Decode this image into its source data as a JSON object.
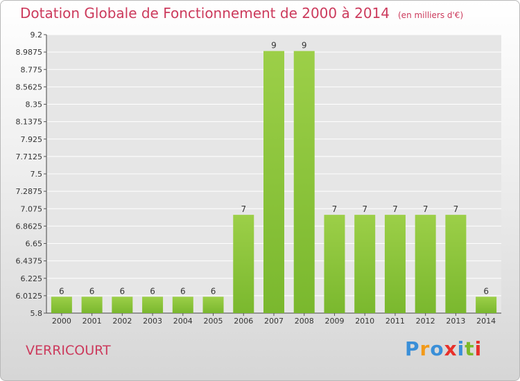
{
  "page": {
    "title": "Dotation Globale de Fonctionnement de 2000 à 2014",
    "subtitle": "(en milliers d'€)",
    "commune": "VERRICOURT",
    "logo": {
      "text": "Proxiti",
      "letters": [
        {
          "char": "P",
          "color": "#3a8fd8"
        },
        {
          "char": "r",
          "color": "#f29a1a"
        },
        {
          "char": "o",
          "color": "#3a8fd8"
        },
        {
          "char": "x",
          "color": "#e8302a"
        },
        {
          "char": "i",
          "color": "#3a8fd8"
        },
        {
          "char": "t",
          "color": "#7cb928"
        },
        {
          "char": "i",
          "color": "#e8302a"
        }
      ]
    }
  },
  "chart_data": {
    "type": "bar",
    "title": "Dotation Globale de Fonctionnement de 2000 à 2014",
    "unit": "(en milliers d'€)",
    "categories": [
      "2000",
      "2001",
      "2002",
      "2003",
      "2004",
      "2005",
      "2006",
      "2007",
      "2008",
      "2009",
      "2010",
      "2011",
      "2012",
      "2013",
      "2014"
    ],
    "values": [
      6,
      6,
      6,
      6,
      6,
      6,
      7,
      9,
      9,
      7,
      7,
      7,
      7,
      7,
      6
    ],
    "data_labels": [
      "6",
      "6",
      "6",
      "6",
      "6",
      "6",
      "7",
      "9",
      "9",
      "7",
      "7",
      "7",
      "7",
      "7",
      "6"
    ],
    "ylim": [
      5.8,
      9.2
    ],
    "yticks": [
      "5.8",
      "6.0125",
      "6.225",
      "6.4375",
      "6.65",
      "6.8625",
      "7.075",
      "7.2875",
      "7.5",
      "7.7125",
      "7.925",
      "8.1375",
      "8.35",
      "8.5625",
      "8.775",
      "8.9875",
      "9.2"
    ],
    "grid": true,
    "bar_color": "#7ab82e",
    "bar_highlight_color": "#9ccf48",
    "grid_color": "#ffffff"
  }
}
